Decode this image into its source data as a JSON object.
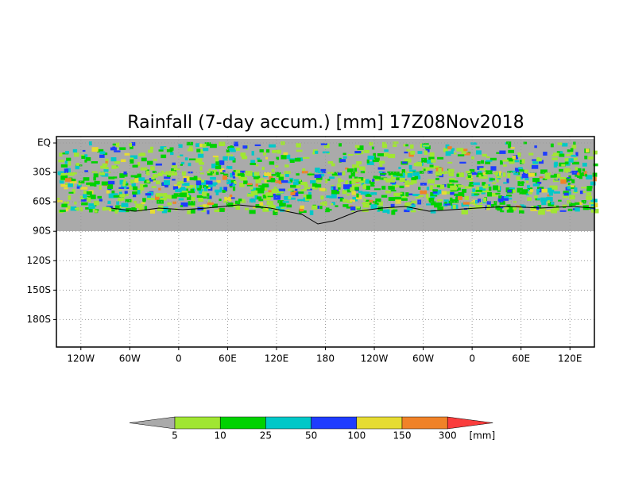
{
  "chart_data": {
    "type": "map",
    "title": "Rainfall (7-day accum.) [mm] 17Z08Nov2018",
    "xlim": [
      -150,
      510
    ],
    "ylim": [
      -208,
      6.5
    ],
    "xticks": [
      {
        "value": -120,
        "label": "120W"
      },
      {
        "value": -60,
        "label": "60W"
      },
      0,
      {
        "value": 60,
        "label": "60E"
      },
      {
        "value": 120,
        "label": "120E"
      },
      180,
      {
        "value": 240,
        "label": "120W"
      },
      {
        "value": 300,
        "label": "60W"
      },
      {
        "value": 360,
        "label": "0"
      },
      {
        "value": 420,
        "label": "60E"
      },
      {
        "value": 480,
        "label": "120E"
      }
    ],
    "yticks": [
      {
        "value": 0,
        "label": "EQ"
      },
      {
        "value": -30,
        "label": "30S"
      },
      {
        "value": -60,
        "label": "60S"
      },
      {
        "value": -90,
        "label": "90S"
      },
      {
        "value": -120,
        "label": "120S"
      },
      {
        "value": -150,
        "label": "150S"
      },
      {
        "value": -180,
        "label": "180S"
      }
    ],
    "grid": true,
    "colorbar": {
      "levels": [
        5,
        10,
        25,
        50,
        100,
        150,
        300
      ],
      "colors": [
        "#aaaaaa",
        "#a0e632",
        "#00d200",
        "#00c8c8",
        "#1e3cff",
        "#e6dc32",
        "#f08228",
        "#fa3c3c"
      ],
      "unit": "[mm]"
    }
  }
}
